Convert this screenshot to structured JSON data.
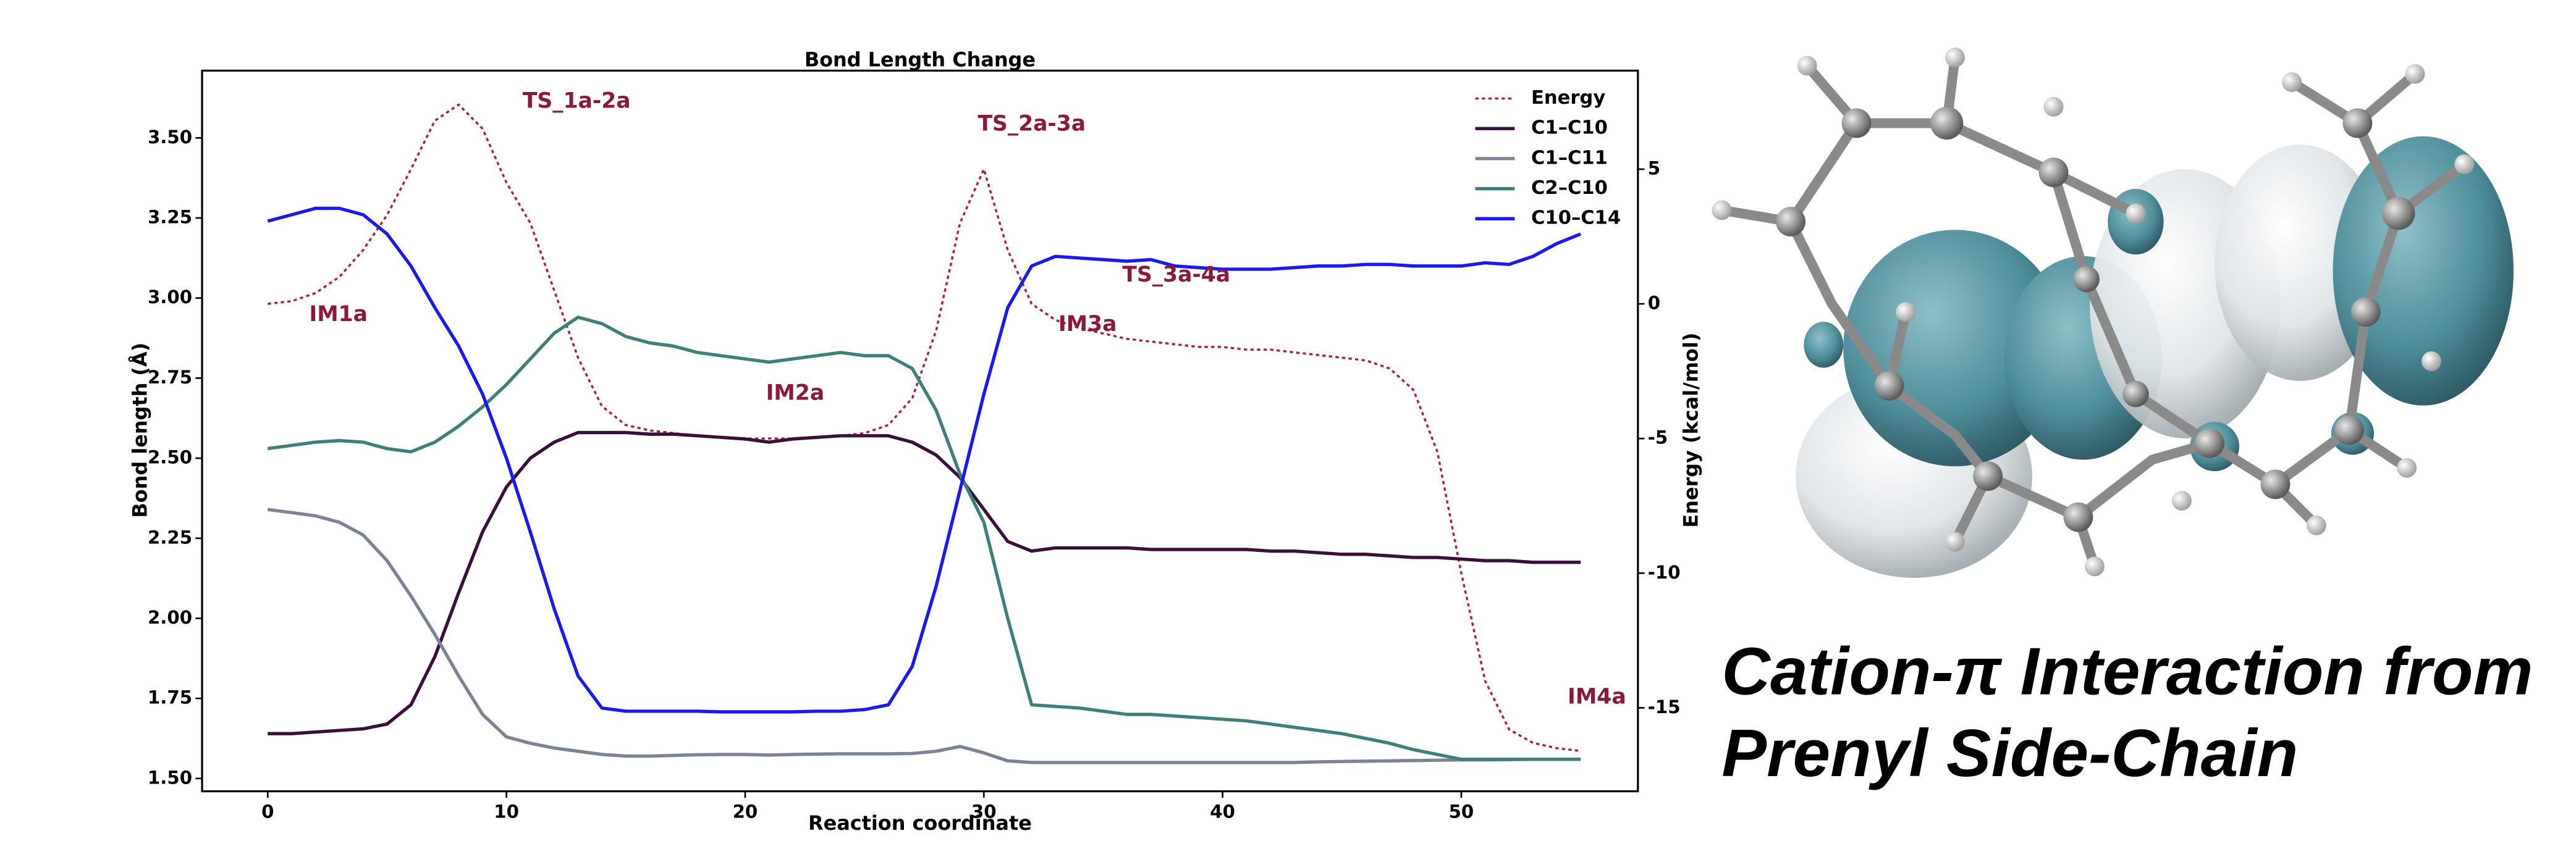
{
  "chart_data": {
    "type": "line",
    "title": "Bond Length Change",
    "xlabel": "Reaction coordinate",
    "ylabel": "Bond length (Å)",
    "y2label": "Energy (kcal/mol)",
    "x": [
      0,
      1,
      2,
      3,
      4,
      5,
      6,
      7,
      8,
      9,
      10,
      11,
      12,
      13,
      14,
      15,
      16,
      17,
      18,
      19,
      20,
      21,
      22,
      23,
      24,
      25,
      26,
      27,
      28,
      29,
      30,
      31,
      32,
      33,
      34,
      35,
      36,
      37,
      38,
      39,
      40,
      41,
      42,
      43,
      44,
      45,
      46,
      47,
      48,
      49,
      50,
      51,
      52,
      53,
      54,
      55
    ],
    "xlim": [
      -2.75,
      57.4
    ],
    "xticks": [
      0,
      10,
      20,
      30,
      40,
      50
    ],
    "ylim": [
      1.46,
      3.71
    ],
    "yticks": [
      {
        "value": 1.5,
        "label": "1.50"
      },
      {
        "value": 1.75,
        "label": "1.75"
      },
      {
        "value": 2.0,
        "label": "2.00"
      },
      {
        "value": 2.25,
        "label": "2.25"
      },
      {
        "value": 2.5,
        "label": "2.50"
      },
      {
        "value": 2.75,
        "label": "2.75"
      },
      {
        "value": 3.0,
        "label": "3.00"
      },
      {
        "value": 3.25,
        "label": "3.25"
      },
      {
        "value": 3.5,
        "label": "3.50"
      }
    ],
    "y2lim": [
      -18.1,
      8.66
    ],
    "y2ticks": [
      -15,
      -10,
      -5,
      0,
      5
    ],
    "legend": "upper right",
    "series": [
      {
        "name": "Energy",
        "color": "#a8203c",
        "dash": "dotted",
        "axis": "y2",
        "values": [
          0,
          0.1,
          0.4,
          1,
          2,
          3.3,
          5,
          6.8,
          7.4,
          6.5,
          4.5,
          3,
          0.5,
          -2,
          -3.8,
          -4.5,
          -4.7,
          -4.8,
          -4.9,
          -4.95,
          -5,
          -5,
          -5,
          -4.95,
          -4.9,
          -4.8,
          -4.5,
          -3.5,
          -1,
          3,
          5,
          2,
          0,
          -0.6,
          -0.9,
          -1.1,
          -1.3,
          -1.4,
          -1.5,
          -1.6,
          -1.6,
          -1.7,
          -1.7,
          -1.8,
          -1.9,
          -2,
          -2.1,
          -2.4,
          -3.2,
          -5.5,
          -10,
          -14,
          -15.8,
          -16.3,
          -16.5,
          -16.6
        ]
      },
      {
        "name": "C1–C10",
        "color": "#3a0f3a",
        "values": [
          1.64,
          1.64,
          1.645,
          1.65,
          1.655,
          1.67,
          1.73,
          1.88,
          2.08,
          2.27,
          2.41,
          2.5,
          2.55,
          2.58,
          2.58,
          2.58,
          2.575,
          2.575,
          2.57,
          2.565,
          2.56,
          2.55,
          2.56,
          2.565,
          2.57,
          2.57,
          2.57,
          2.55,
          2.51,
          2.44,
          2.34,
          2.24,
          2.21,
          2.22,
          2.22,
          2.22,
          2.22,
          2.215,
          2.215,
          2.215,
          2.215,
          2.215,
          2.21,
          2.21,
          2.205,
          2.2,
          2.2,
          2.195,
          2.19,
          2.19,
          2.185,
          2.18,
          2.18,
          2.175,
          2.175,
          2.175
        ]
      },
      {
        "name": "C1–C11",
        "color": "#7a8494",
        "values": [
          2.34,
          2.33,
          2.32,
          2.3,
          2.26,
          2.18,
          2.07,
          1.95,
          1.82,
          1.7,
          1.63,
          1.61,
          1.595,
          1.585,
          1.575,
          1.57,
          1.57,
          1.572,
          1.574,
          1.575,
          1.575,
          1.573,
          1.575,
          1.576,
          1.577,
          1.577,
          1.577,
          1.578,
          1.585,
          1.6,
          1.58,
          1.555,
          1.55,
          1.55,
          1.55,
          1.55,
          1.55,
          1.55,
          1.55,
          1.55,
          1.55,
          1.55,
          1.55,
          1.55,
          1.552,
          1.553,
          1.554,
          1.555,
          1.556,
          1.557,
          1.558,
          1.558,
          1.559,
          1.56,
          1.56,
          1.56
        ]
      },
      {
        "name": "C2–C10",
        "color": "#3f7f7a",
        "values": [
          2.53,
          2.54,
          2.55,
          2.555,
          2.55,
          2.53,
          2.52,
          2.55,
          2.6,
          2.66,
          2.73,
          2.81,
          2.89,
          2.94,
          2.92,
          2.88,
          2.86,
          2.85,
          2.83,
          2.82,
          2.81,
          2.8,
          2.81,
          2.82,
          2.83,
          2.82,
          2.82,
          2.78,
          2.65,
          2.45,
          2.3,
          2.0,
          1.73,
          1.725,
          1.72,
          1.71,
          1.7,
          1.7,
          1.695,
          1.69,
          1.685,
          1.68,
          1.67,
          1.66,
          1.65,
          1.64,
          1.625,
          1.61,
          1.59,
          1.575,
          1.56,
          1.56,
          1.56,
          1.56,
          1.56,
          1.56
        ]
      },
      {
        "name": "C10–C14",
        "color": "#1a1aee",
        "values": [
          3.24,
          3.26,
          3.28,
          3.28,
          3.26,
          3.2,
          3.1,
          2.97,
          2.85,
          2.7,
          2.5,
          2.27,
          2.03,
          1.82,
          1.72,
          1.71,
          1.71,
          1.71,
          1.71,
          1.708,
          1.708,
          1.708,
          1.708,
          1.71,
          1.71,
          1.715,
          1.73,
          1.85,
          2.1,
          2.4,
          2.7,
          2.97,
          3.1,
          3.13,
          3.125,
          3.12,
          3.115,
          3.12,
          3.1,
          3.095,
          3.09,
          3.09,
          3.09,
          3.095,
          3.1,
          3.1,
          3.105,
          3.105,
          3.1,
          3.1,
          3.1,
          3.11,
          3.105,
          3.13,
          3.17,
          3.2
        ]
      }
    ],
    "annotations": [
      "TS_1a-2a",
      "IM1a",
      "IM2a",
      "TS_2a-3a",
      "IM3a",
      "TS_3a-4a",
      "IM4a"
    ]
  },
  "headline": [
    "Cation-π Interaction from",
    "Prenyl Side-Chain"
  ]
}
